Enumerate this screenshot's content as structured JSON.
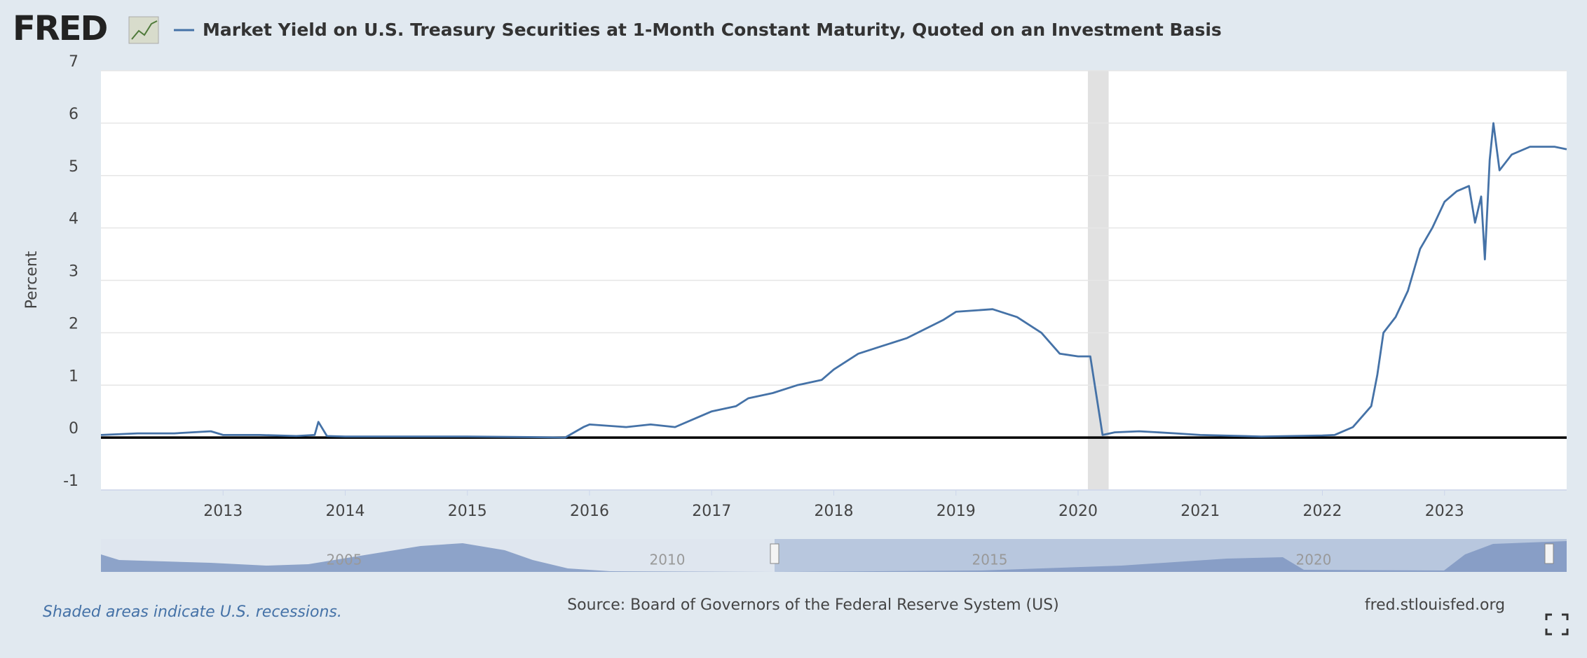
{
  "logo": "FRED",
  "chart_data": {
    "type": "line",
    "ylabel": "Percent",
    "xlim": [
      2012.0,
      2024.0
    ],
    "ylim": [
      -1,
      7
    ],
    "xticks": [
      2013,
      2014,
      2015,
      2016,
      2017,
      2018,
      2019,
      2020,
      2021,
      2022,
      2023
    ],
    "yticks": [
      -1,
      0,
      1,
      2,
      3,
      4,
      5,
      6,
      7
    ],
    "grid": true,
    "recessions": [
      [
        2020.08,
        2020.25
      ]
    ],
    "series": [
      {
        "name": "Market Yield on U.S. Treasury Securities at 1-Month Constant Maturity, Quoted on an Investment Basis",
        "color": "#4572a7",
        "x": [
          2012.0,
          2012.3,
          2012.6,
          2012.9,
          2013.0,
          2013.3,
          2013.6,
          2013.75,
          2013.78,
          2013.85,
          2014.0,
          2014.5,
          2015.0,
          2015.5,
          2015.8,
          2015.95,
          2016.0,
          2016.3,
          2016.5,
          2016.7,
          2016.9,
          2017.0,
          2017.2,
          2017.3,
          2017.5,
          2017.7,
          2017.9,
          2018.0,
          2018.2,
          2018.4,
          2018.6,
          2018.9,
          2019.0,
          2019.3,
          2019.5,
          2019.7,
          2019.85,
          2020.0,
          2020.1,
          2020.2,
          2020.3,
          2020.5,
          2020.8,
          2021.0,
          2021.5,
          2022.0,
          2022.1,
          2022.25,
          2022.4,
          2022.45,
          2022.5,
          2022.6,
          2022.7,
          2022.8,
          2022.9,
          2023.0,
          2023.1,
          2023.2,
          2023.25,
          2023.3,
          2023.33,
          2023.37,
          2023.4,
          2023.45,
          2023.55,
          2023.7,
          2023.9,
          2024.0
        ],
        "values": [
          0.05,
          0.08,
          0.08,
          0.12,
          0.05,
          0.05,
          0.03,
          0.05,
          0.3,
          0.03,
          0.02,
          0.02,
          0.02,
          0.01,
          0.0,
          0.2,
          0.25,
          0.2,
          0.25,
          0.2,
          0.4,
          0.5,
          0.6,
          0.75,
          0.85,
          1.0,
          1.1,
          1.3,
          1.6,
          1.75,
          1.9,
          2.25,
          2.4,
          2.45,
          2.3,
          2.0,
          1.6,
          1.55,
          1.55,
          0.05,
          0.1,
          0.12,
          0.08,
          0.05,
          0.02,
          0.04,
          0.05,
          0.2,
          0.6,
          1.2,
          2.0,
          2.3,
          2.8,
          3.6,
          4.0,
          4.5,
          4.7,
          4.8,
          4.1,
          4.6,
          3.4,
          5.3,
          6.0,
          5.1,
          5.4,
          5.55,
          5.55,
          5.5
        ]
      }
    ]
  },
  "navigator": {
    "labels": [
      "2005",
      "2010",
      "2015",
      "2020"
    ]
  },
  "footer": {
    "note": "Shaded areas indicate U.S. recessions.",
    "source": "Source: Board of Governors of the Federal Reserve System (US)",
    "site": "fred.stlouisfed.org"
  }
}
